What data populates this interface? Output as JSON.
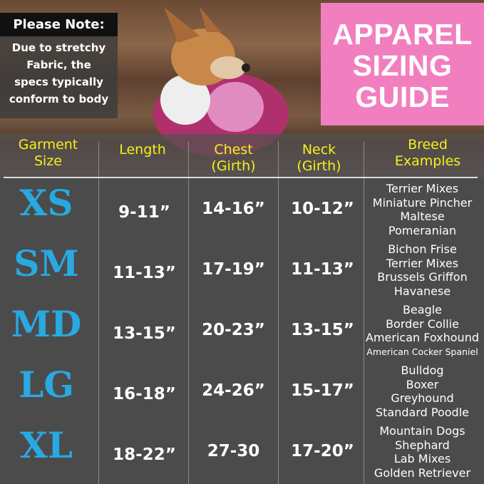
{
  "note": {
    "title": "Please Note:",
    "body": [
      "Due to stretchy",
      "Fabric, the",
      "specs typically",
      "conform to body"
    ]
  },
  "banner": {
    "lines": [
      "APPAREL",
      "SIZING",
      "GUIDE"
    ],
    "color": "#f17fbf"
  },
  "columns": [
    "Garment Size",
    "Length",
    "Chest (Girth)",
    "Neck (Girth)",
    "Breed Examples"
  ],
  "columns_lines": [
    [
      "Garment",
      "Size"
    ],
    [
      "Length"
    ],
    [
      "Chest",
      "(Girth)"
    ],
    [
      "Neck",
      "(Girth)"
    ],
    [
      "Breed",
      "Examples"
    ]
  ],
  "rows": [
    {
      "size": "XS",
      "length": "9-11”",
      "chest": "14-16”",
      "neck": "10-12”",
      "breeds": [
        "Terrier Mixes",
        "Miniature Pincher",
        "Maltese",
        "Pomeranian"
      ]
    },
    {
      "size": "SM",
      "length": "11-13”",
      "chest": "17-19”",
      "neck": "11-13”",
      "breeds": [
        "Bichon Frise",
        "Terrier Mixes",
        "Brussels Griffon",
        "Havanese"
      ]
    },
    {
      "size": "MD",
      "length": "13-15”",
      "chest": "20-23”",
      "neck": "13-15”",
      "breeds": [
        "Beagle",
        "Border Collie",
        "American Foxhound",
        "American Cocker Spaniel"
      ]
    },
    {
      "size": "LG",
      "length": "16-18”",
      "chest": "24-26”",
      "neck": "15-17”",
      "breeds": [
        "Bulldog",
        "Boxer",
        "Greyhound",
        "Standard Poodle"
      ]
    },
    {
      "size": "XL",
      "length": "18-22”",
      "chest": "27-30",
      "neck": "17-20”",
      "breeds": [
        "Mountain Dogs",
        "Shephard",
        "Lab Mixes",
        "Golden Retriever"
      ]
    }
  ],
  "colors": {
    "size_label": "#28a9e1",
    "header_text": "#f4f11a",
    "background": "#4b4b4b"
  }
}
